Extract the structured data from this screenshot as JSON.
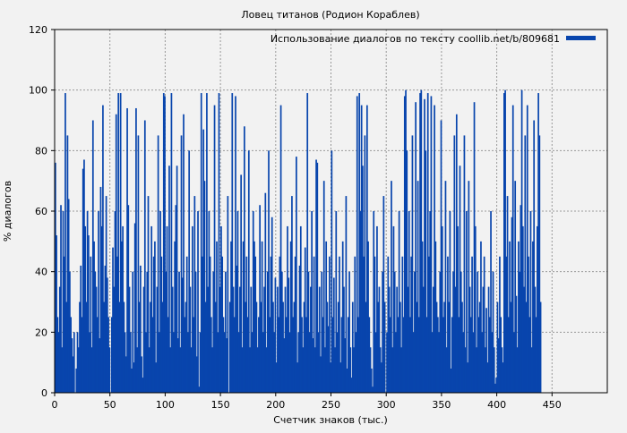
{
  "chart_data": {
    "type": "bar",
    "title": "Ловец титанов (Родион Кораблев)",
    "xlabel": "Счетчик знаков (тыс.)",
    "ylabel": "% диалогов",
    "xlim": [
      0,
      500
    ],
    "ylim": [
      0,
      120
    ],
    "xticks": [
      0,
      50,
      100,
      150,
      200,
      250,
      300,
      350,
      400,
      450
    ],
    "yticks": [
      0,
      20,
      40,
      60,
      80,
      100,
      120
    ],
    "grid": true,
    "legend": {
      "position": "top-right",
      "label": "Использование диалогов по тексту coollib.net/b/809681"
    },
    "color": "#0845ad",
    "values": [
      76,
      52,
      25,
      20,
      35,
      62,
      15,
      60,
      45,
      99,
      30,
      85,
      64,
      40,
      25,
      18,
      12,
      20,
      0,
      8,
      20,
      15,
      30,
      42,
      25,
      74,
      77,
      55,
      30,
      60,
      52,
      20,
      45,
      15,
      90,
      50,
      40,
      35,
      25,
      60,
      18,
      68,
      55,
      95,
      30,
      42,
      65,
      38,
      25,
      15,
      0,
      25,
      48,
      35,
      60,
      92,
      45,
      99,
      30,
      99,
      50,
      55,
      30,
      20,
      12,
      94,
      62,
      35,
      20,
      8,
      40,
      10,
      56,
      94,
      15,
      85,
      30,
      42,
      12,
      5,
      35,
      90,
      20,
      40,
      65,
      15,
      30,
      55,
      25,
      45,
      50,
      10,
      35,
      85,
      20,
      60,
      45,
      30,
      99,
      98,
      40,
      55,
      25,
      75,
      15,
      99,
      35,
      20,
      50,
      62,
      75,
      18,
      40,
      15,
      85,
      38,
      92,
      25,
      30,
      45,
      20,
      80,
      35,
      15,
      55,
      25,
      65,
      40,
      12,
      60,
      2,
      20,
      99,
      45,
      87,
      70,
      30,
      99,
      35,
      60,
      45,
      25,
      15,
      40,
      95,
      30,
      50,
      20,
      99,
      35,
      55,
      45,
      25,
      20,
      40,
      18,
      65,
      0,
      30,
      50,
      99,
      35,
      25,
      98,
      42,
      60,
      20,
      35,
      72,
      15,
      50,
      88,
      30,
      45,
      25,
      80,
      15,
      35,
      20,
      60,
      50,
      45,
      30,
      15,
      25,
      62,
      30,
      50,
      20,
      35,
      66,
      15,
      40,
      80,
      25,
      45,
      58,
      30,
      20,
      38,
      10,
      35,
      25,
      45,
      95,
      40,
      30,
      18,
      35,
      25,
      55,
      38,
      20,
      50,
      65,
      25,
      30,
      45,
      78,
      10,
      20,
      42,
      55,
      25,
      15,
      30,
      48,
      25,
      99,
      40,
      20,
      35,
      60,
      18,
      45,
      15,
      77,
      76,
      20,
      35,
      12,
      40,
      25,
      70,
      15,
      50,
      30,
      22,
      45,
      10,
      80,
      25,
      38,
      15,
      60,
      20,
      30,
      45,
      10,
      25,
      50,
      35,
      18,
      65,
      8,
      25,
      40,
      15,
      5,
      30,
      15,
      45,
      20,
      98,
      25,
      99,
      60,
      95,
      75,
      45,
      85,
      30,
      95,
      50,
      25,
      15,
      8,
      2,
      60,
      45,
      20,
      55,
      30,
      35,
      15,
      10,
      40,
      65,
      30,
      0,
      20,
      45,
      35,
      25,
      70,
      15,
      55,
      40,
      20,
      35,
      25,
      60,
      30,
      15,
      45,
      25,
      98,
      100,
      80,
      35,
      60,
      25,
      45,
      85,
      20,
      40,
      96,
      30,
      70,
      25,
      99,
      100,
      50,
      35,
      97,
      80,
      25,
      99,
      45,
      60,
      98,
      20,
      35,
      95,
      50,
      30,
      25,
      20,
      40,
      90,
      55,
      25,
      30,
      70,
      15,
      45,
      30,
      60,
      8,
      25,
      40,
      85,
      35,
      92,
      55,
      25,
      75,
      40,
      30,
      20,
      85,
      15,
      60,
      10,
      70,
      35,
      25,
      45,
      20,
      96,
      55,
      15,
      40,
      25,
      30,
      50,
      20,
      35,
      45,
      15,
      28,
      10,
      35,
      25,
      60,
      20,
      40,
      15,
      3,
      5,
      30,
      18,
      45,
      25,
      15,
      10,
      99,
      100,
      45,
      65,
      25,
      50,
      30,
      58,
      95,
      20,
      70,
      32,
      15,
      50,
      40,
      62,
      100,
      55,
      35,
      85,
      30,
      95,
      45,
      25,
      60,
      15,
      50,
      90,
      35,
      25,
      55,
      99,
      85,
      30
    ]
  }
}
